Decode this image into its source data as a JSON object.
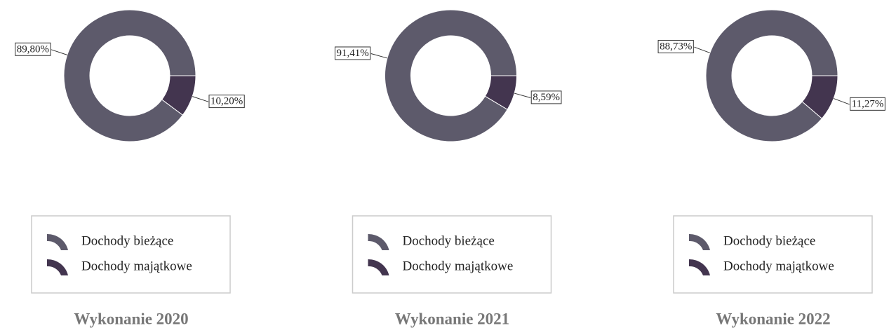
{
  "chart_data": [
    {
      "type": "donut",
      "title": "Wykonanie 2020",
      "categories": [
        "Dochody bieżące",
        "Dochody majątkowe"
      ],
      "values": [
        89.8,
        10.2
      ],
      "value_labels": [
        "89,80%",
        "10,20%"
      ],
      "colors": [
        "#5d5a6b",
        "#43354f"
      ],
      "legend": "bottom"
    },
    {
      "type": "donut",
      "title": "Wykonanie 2021",
      "categories": [
        "Dochody bieżące",
        "Dochody majątkowe"
      ],
      "values": [
        91.41,
        8.59
      ],
      "value_labels": [
        "91,41%",
        "8,59%"
      ],
      "colors": [
        "#5d5a6b",
        "#43354f"
      ],
      "legend": "bottom"
    },
    {
      "type": "donut",
      "title": "Wykonanie 2022",
      "categories": [
        "Dochody bieżące",
        "Dochody majątkowe"
      ],
      "values": [
        88.73,
        11.27
      ],
      "value_labels": [
        "88,73%",
        "11,27%"
      ],
      "colors": [
        "#5d5a6b",
        "#43354f"
      ],
      "legend": "bottom"
    }
  ]
}
